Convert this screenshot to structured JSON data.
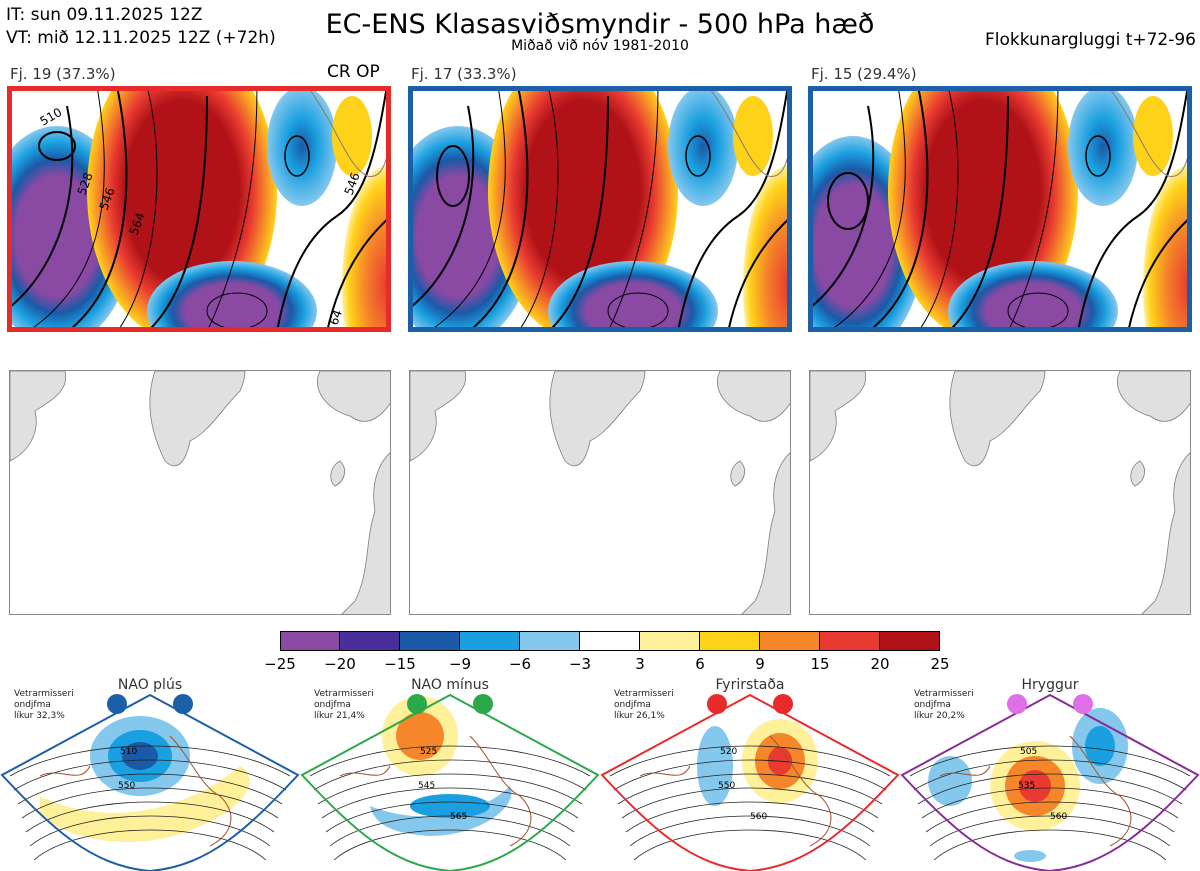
{
  "header": {
    "init_time": "IT: sun 09.11.2025 12Z",
    "valid_time": "VT: mið 12.11.2025 12Z  (+72h)",
    "title": "EC-ENS Klasasviðsmyndir - 500 hPa hæð",
    "subtitle": "Miðað við nóv 1981-2010",
    "window": "Flokkunargluggi t+72-96"
  },
  "clusters": [
    {
      "label": "Fj. 19 (37.3%)",
      "tag": "CR OP",
      "frame_color": "#e82a2a"
    },
    {
      "label": "Fj. 17 (33.3%)",
      "tag": "",
      "frame_color": "#1a5fa8"
    },
    {
      "label": "Fj. 15 (29.4%)",
      "tag": "",
      "frame_color": "#1a5fa8"
    }
  ],
  "contour_labels": [
    "510",
    "528",
    "546",
    "564",
    "546",
    "64"
  ],
  "colorbar": {
    "ticks": [
      "−25",
      "−20",
      "−15",
      "−9",
      "−6",
      "−3",
      "3",
      "6",
      "9",
      "15",
      "20",
      "25"
    ],
    "colors": [
      "#8a49a3",
      "#4a2f9c",
      "#1a5aa8",
      "#1aa0e0",
      "#85c8ee",
      "#ffffff",
      "#fff09a",
      "#ffd21a",
      "#f5872a",
      "#e83a30",
      "#b01218"
    ]
  },
  "regimes": [
    {
      "name": "NAO plús",
      "info": [
        "Vetrarmisseri",
        "ondjfma",
        "líkur 32,3%"
      ],
      "color": "#1a5fa8",
      "dot_color": "#1a5fa8",
      "labels": [
        "510",
        "550"
      ]
    },
    {
      "name": "NAO mínus",
      "info": [
        "Vetrarmisseri",
        "ondjfma",
        "líkur 21,4%"
      ],
      "color": "#2aa84a",
      "dot_color": "#2aa84a",
      "labels": [
        "525",
        "545",
        "565"
      ]
    },
    {
      "name": "Fyrirstaða",
      "info": [
        "Vetrarmisseri",
        "ondjfma",
        "líkur 26,1%"
      ],
      "color": "#e82a2a",
      "dot_color": "#e82a2a",
      "labels": [
        "520",
        "550",
        "560"
      ]
    },
    {
      "name": "Hryggur",
      "info": [
        "Vetrarmisseri",
        "ondjfma",
        "líkur 20,2%"
      ],
      "color": "#8a2a9a",
      "dot_color": "#e070e8",
      "labels": [
        "505",
        "535",
        "560"
      ]
    }
  ]
}
